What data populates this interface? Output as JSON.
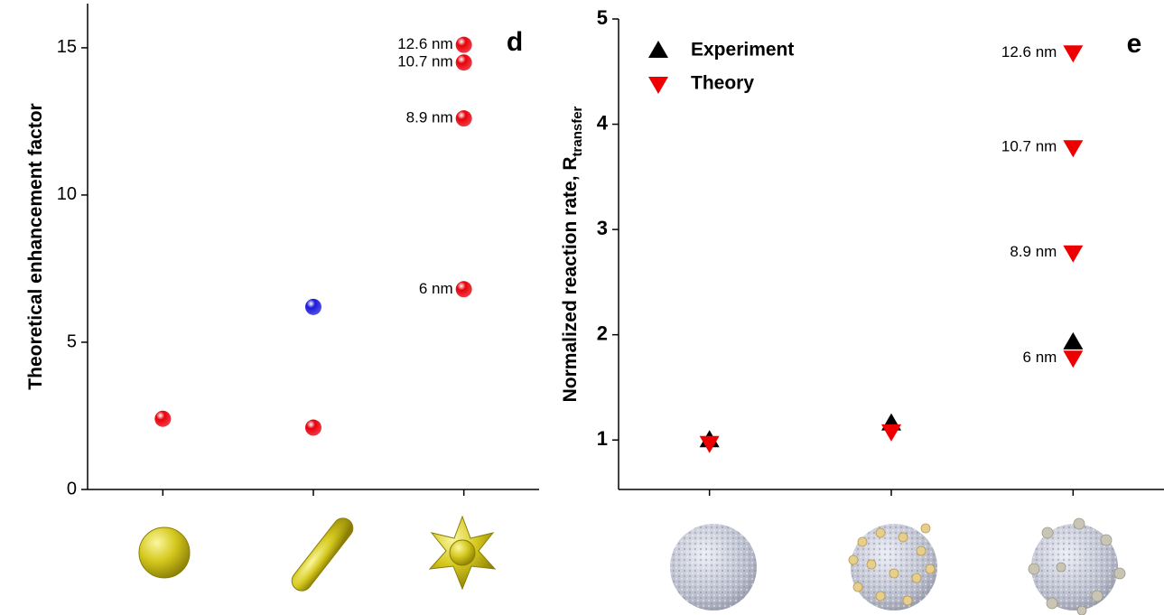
{
  "chart_data": [
    {
      "type": "scatter",
      "panel_label": "d",
      "y_label": "Theoretical enhancement factor",
      "ylim": [
        0,
        16.5
      ],
      "yticks": [
        0,
        5,
        10,
        15
      ],
      "xlim": [
        0.5,
        3.5
      ],
      "xticks": [
        1,
        2,
        3
      ],
      "series": [
        {
          "color": "#e8000b",
          "marker": "sphere",
          "x": [
            1,
            2,
            3,
            3,
            3,
            3
          ],
          "values": [
            2.4,
            2.1,
            6.8,
            12.6,
            14.5,
            15.1
          ],
          "point_labels": [
            null,
            null,
            "6 nm",
            "8.9 nm",
            "10.7 nm",
            "12.6 nm"
          ]
        },
        {
          "color": "#1a1adb",
          "marker": "sphere",
          "x": [
            2
          ],
          "values": [
            6.2
          ]
        }
      ]
    },
    {
      "type": "scatter",
      "panel_label": "e",
      "y_label": "Normalized reaction rate, R",
      "y_label_sub": "transfer",
      "ylim": [
        0.53,
        5
      ],
      "yticks": [
        1,
        2,
        3,
        4,
        5
      ],
      "xlim": [
        0.5,
        3.5
      ],
      "xticks": [
        1,
        2,
        3
      ],
      "legend": "upper left",
      "series": [
        {
          "name": "Experiment",
          "color": "#000000",
          "marker": "triangle-up",
          "x": [
            1,
            2,
            3
          ],
          "values": [
            1.0,
            1.16,
            1.93
          ]
        },
        {
          "name": "Theory",
          "color": "#ee0000",
          "marker": "triangle-down",
          "x": [
            1,
            2,
            3,
            3,
            3,
            3
          ],
          "values": [
            0.97,
            1.08,
            1.78,
            2.78,
            3.78,
            4.68
          ],
          "point_labels": [
            null,
            null,
            "6 nm",
            "8.9 nm",
            "10.7 nm",
            "12.6 nm"
          ]
        }
      ]
    }
  ]
}
